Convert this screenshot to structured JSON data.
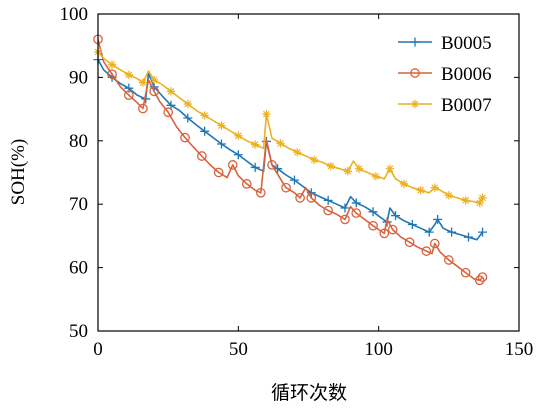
{
  "chart_data": {
    "type": "line",
    "title": "",
    "xlabel": "循环次数",
    "ylabel": "SOH(%)",
    "xlim": [
      0,
      150
    ],
    "ylim": [
      50,
      100
    ],
    "xticks": [
      0,
      50,
      100,
      150
    ],
    "yticks": [
      50,
      60,
      70,
      80,
      90,
      100
    ],
    "grid": false,
    "legend": "top-right",
    "series": [
      {
        "name": "B0005",
        "color": "#1f77b4",
        "marker": "plus",
        "points": [
          [
            0,
            92.8
          ],
          [
            2,
            91.2
          ],
          [
            5,
            90.0
          ],
          [
            8,
            89.0
          ],
          [
            11,
            88.3
          ],
          [
            14,
            87.2
          ],
          [
            17,
            86.6
          ],
          [
            18,
            90.6
          ],
          [
            20,
            88.5
          ],
          [
            23,
            87.0
          ],
          [
            26,
            85.6
          ],
          [
            29,
            84.8
          ],
          [
            32,
            83.6
          ],
          [
            35,
            82.5
          ],
          [
            38,
            81.5
          ],
          [
            41,
            80.5
          ],
          [
            44,
            79.5
          ],
          [
            47,
            78.6
          ],
          [
            50,
            77.8
          ],
          [
            53,
            76.8
          ],
          [
            56,
            75.8
          ],
          [
            59,
            75.2
          ],
          [
            60,
            79.9
          ],
          [
            62,
            76.2
          ],
          [
            64,
            75.6
          ],
          [
            67,
            74.6
          ],
          [
            70,
            73.8
          ],
          [
            73,
            72.8
          ],
          [
            76,
            71.8
          ],
          [
            79,
            71.2
          ],
          [
            82,
            70.6
          ],
          [
            85,
            70.0
          ],
          [
            88,
            69.4
          ],
          [
            90,
            71.2
          ],
          [
            92,
            70.2
          ],
          [
            95,
            69.6
          ],
          [
            98,
            68.8
          ],
          [
            101,
            67.8
          ],
          [
            103,
            67.2
          ],
          [
            104,
            69.4
          ],
          [
            106,
            68.2
          ],
          [
            109,
            67.4
          ],
          [
            112,
            66.8
          ],
          [
            115,
            66.2
          ],
          [
            118,
            65.6
          ],
          [
            120,
            66.8
          ],
          [
            121,
            67.6
          ],
          [
            123,
            66.2
          ],
          [
            126,
            65.6
          ],
          [
            129,
            65.2
          ],
          [
            132,
            64.8
          ],
          [
            135,
            64.4
          ],
          [
            137,
            65.6
          ]
        ]
      },
      {
        "name": "B0006",
        "color": "#d9623b",
        "marker": "circle",
        "points": [
          [
            0,
            96.0
          ],
          [
            2,
            92.5
          ],
          [
            5,
            90.5
          ],
          [
            8,
            88.5
          ],
          [
            11,
            87.2
          ],
          [
            14,
            86.0
          ],
          [
            16,
            85.1
          ],
          [
            18,
            89.6
          ],
          [
            20,
            87.8
          ],
          [
            22,
            86.2
          ],
          [
            25,
            84.5
          ],
          [
            28,
            82.2
          ],
          [
            31,
            80.5
          ],
          [
            34,
            79.0
          ],
          [
            37,
            77.6
          ],
          [
            40,
            76.2
          ],
          [
            43,
            75.0
          ],
          [
            46,
            74.2
          ],
          [
            48,
            76.2
          ],
          [
            50,
            74.5
          ],
          [
            53,
            73.2
          ],
          [
            56,
            72.2
          ],
          [
            58,
            71.8
          ],
          [
            60,
            80.2
          ],
          [
            62,
            76.2
          ],
          [
            65,
            74.0
          ],
          [
            67,
            72.6
          ],
          [
            70,
            71.8
          ],
          [
            72,
            71.0
          ],
          [
            74,
            72.6
          ],
          [
            76,
            71.0
          ],
          [
            79,
            69.8
          ],
          [
            82,
            69.0
          ],
          [
            85,
            68.4
          ],
          [
            88,
            67.6
          ],
          [
            90,
            69.6
          ],
          [
            92,
            68.6
          ],
          [
            95,
            67.6
          ],
          [
            98,
            66.6
          ],
          [
            100,
            66.0
          ],
          [
            102,
            65.4
          ],
          [
            103,
            67.6
          ],
          [
            105,
            66.0
          ],
          [
            108,
            64.8
          ],
          [
            111,
            64.0
          ],
          [
            114,
            63.2
          ],
          [
            117,
            62.6
          ],
          [
            119,
            62.2
          ],
          [
            120,
            63.8
          ],
          [
            122,
            62.4
          ],
          [
            125,
            61.2
          ],
          [
            128,
            60.2
          ],
          [
            131,
            59.2
          ],
          [
            134,
            58.2
          ],
          [
            136,
            58.0
          ],
          [
            137,
            58.5
          ]
        ]
      },
      {
        "name": "B0007",
        "color": "#edb120",
        "marker": "star",
        "points": [
          [
            0,
            94.0
          ],
          [
            2,
            93.0
          ],
          [
            5,
            92.0
          ],
          [
            8,
            91.2
          ],
          [
            11,
            90.4
          ],
          [
            14,
            89.8
          ],
          [
            16,
            89.2
          ],
          [
            18,
            91.0
          ],
          [
            20,
            89.6
          ],
          [
            23,
            88.8
          ],
          [
            26,
            87.8
          ],
          [
            29,
            86.8
          ],
          [
            32,
            85.8
          ],
          [
            35,
            84.8
          ],
          [
            38,
            84.0
          ],
          [
            41,
            83.2
          ],
          [
            44,
            82.4
          ],
          [
            47,
            81.6
          ],
          [
            50,
            80.8
          ],
          [
            53,
            80.0
          ],
          [
            56,
            79.4
          ],
          [
            59,
            78.8
          ],
          [
            60,
            84.2
          ],
          [
            62,
            80.4
          ],
          [
            65,
            79.6
          ],
          [
            68,
            78.8
          ],
          [
            71,
            78.2
          ],
          [
            74,
            77.6
          ],
          [
            77,
            77.0
          ],
          [
            80,
            76.6
          ],
          [
            83,
            76.0
          ],
          [
            86,
            75.6
          ],
          [
            89,
            75.2
          ],
          [
            91,
            76.8
          ],
          [
            93,
            75.6
          ],
          [
            96,
            75.0
          ],
          [
            99,
            74.4
          ],
          [
            102,
            74.0
          ],
          [
            104,
            75.6
          ],
          [
            106,
            74.0
          ],
          [
            109,
            73.2
          ],
          [
            112,
            72.6
          ],
          [
            115,
            72.2
          ],
          [
            118,
            71.8
          ],
          [
            120,
            72.6
          ],
          [
            122,
            72.2
          ],
          [
            125,
            71.4
          ],
          [
            128,
            71.0
          ],
          [
            131,
            70.6
          ],
          [
            134,
            70.4
          ],
          [
            136,
            70.2
          ],
          [
            137,
            71.0
          ]
        ]
      }
    ]
  }
}
